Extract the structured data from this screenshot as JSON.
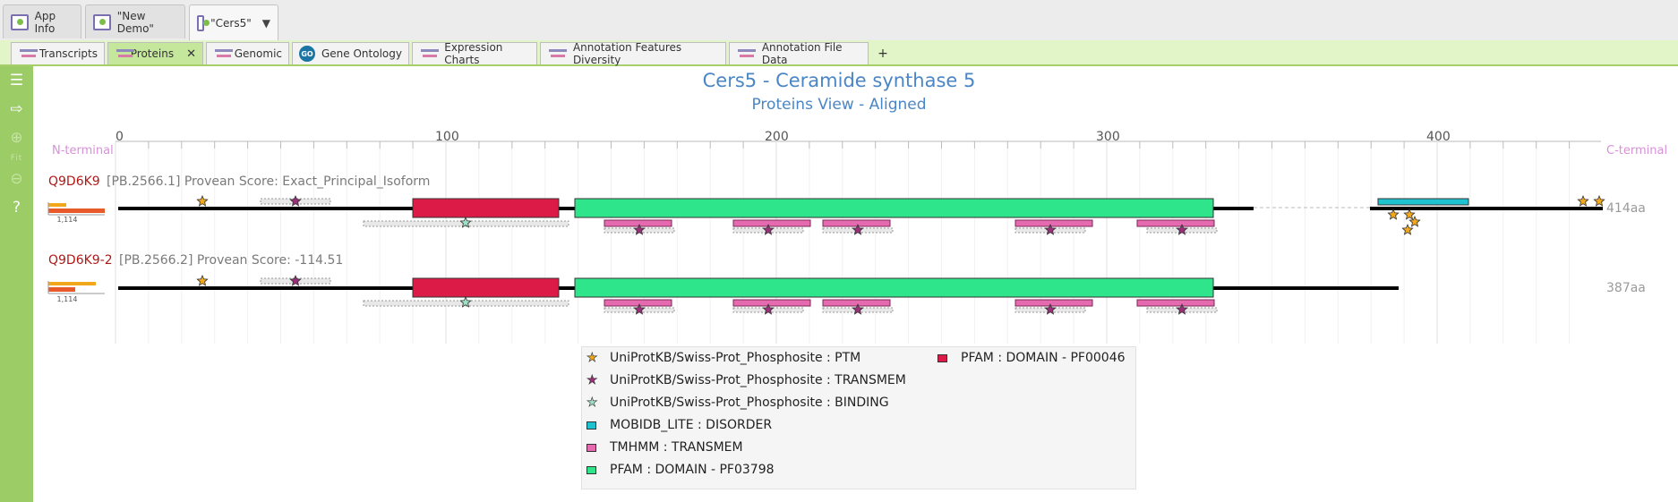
{
  "top_tabs": [
    {
      "label": "App Info",
      "active": false
    },
    {
      "label": "\"New Demo\"",
      "active": false
    },
    {
      "label": "\"Cers5\"",
      "active": true
    }
  ],
  "view_tabs": [
    {
      "label": "Transcripts"
    },
    {
      "label": "Proteins",
      "active": true,
      "close": "✕"
    },
    {
      "label": "Genomic"
    },
    {
      "label": "Gene Ontology",
      "icon_text": "GO"
    },
    {
      "label": "Expression Charts"
    },
    {
      "label": "Annotation Features Diversity"
    },
    {
      "label": "Annotation File Data"
    }
  ],
  "add_tab_label": "+",
  "sidebar": {
    "fit_label": "Fit"
  },
  "header": {
    "title": "Cers5 - Ceramide synthase 5",
    "subtitle": "Proteins View - Aligned"
  },
  "axis": {
    "ticks": [
      "0",
      "100",
      "200",
      "300",
      "400"
    ],
    "n_terminal": "N-terminal",
    "c_terminal": "C-terminal"
  },
  "proteins": [
    {
      "id": "Q9D6K9",
      "info": "[PB.2566.1] Provean Score: Exact_Principal_Isoform",
      "length_label": "414aa",
      "scale_label": "1,114"
    },
    {
      "id": "Q9D6K9-2",
      "info": "[PB.2566.2] Provean Score: -114.51",
      "length_label": "387aa",
      "scale_label": "1,114"
    }
  ],
  "legend": [
    {
      "label": "UniProtKB/Swiss-Prot_Phosphosite : PTM",
      "symbol": "star",
      "color": "#f2a81d"
    },
    {
      "label": "UniProtKB/Swiss-Prot_Phosphosite : TRANSMEM",
      "symbol": "star",
      "color": "#9c2f7a"
    },
    {
      "label": "UniProtKB/Swiss-Prot_Phosphosite : BINDING",
      "symbol": "star",
      "color": "#9fe0c6"
    },
    {
      "label": "MOBIDB_LITE : DISORDER",
      "symbol": "box",
      "color": "#1fc3d0"
    },
    {
      "label": "TMHMM : TRANSMEM",
      "symbol": "box",
      "color": "#e56aaf"
    },
    {
      "label": "PFAM : DOMAIN - PF03798",
      "symbol": "box",
      "color": "#2ee58b"
    },
    {
      "label": "PFAM : DOMAIN - PF00046",
      "symbol": "box",
      "color": "#dc1c46"
    }
  ],
  "colors": {
    "accent_green": "#9ccc65",
    "title_blue": "#4a86c5",
    "pfam_domain": "#2ee58b",
    "pfam_homeobox": "#dc1c46",
    "tmhmm": "#e56aaf",
    "disorder": "#1fc3d0"
  }
}
